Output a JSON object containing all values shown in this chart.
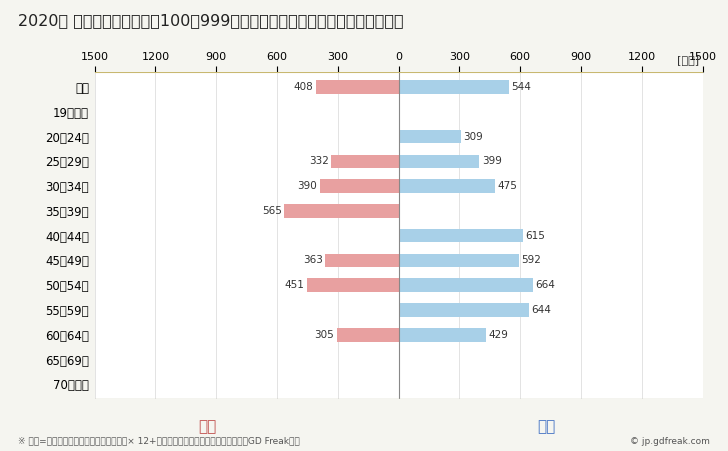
{
  "title": "2020年 民間企業（従業者数100～999人）フルタイム労働者の男女別平均年収",
  "unit_label": "[万円]",
  "categories": [
    "全体",
    "19歳以下",
    "20～24歳",
    "25～29歳",
    "30～34歳",
    "35～39歳",
    "40～44歳",
    "45～49歳",
    "50～54歳",
    "55～59歳",
    "60～64歳",
    "65～69歳",
    "70歳以上"
  ],
  "female_values": [
    408,
    0,
    0,
    332,
    390,
    565,
    0,
    363,
    451,
    0,
    305,
    0,
    0
  ],
  "male_values": [
    544,
    0,
    309,
    399,
    475,
    0,
    615,
    592,
    664,
    644,
    429,
    0,
    0
  ],
  "female_color": "#e8a0a0",
  "male_color": "#a8d0e8",
  "xlim": 1500,
  "female_label": "女性",
  "male_label": "男性",
  "female_label_color": "#c0504d",
  "male_label_color": "#4472c4",
  "footnote": "※ 年収=「きまって支給する現金給与額」× 12+「年間賞与その他特別給与額」としてGD Freak推計",
  "copyright": "© jp.gdfreak.com",
  "background_color": "#f5f5f0",
  "plot_background": "#ffffff",
  "title_fontsize": 11.5,
  "bar_height": 0.55,
  "border_top_color": "#c8b870",
  "border_bottom_color": "#c8c8b0",
  "grid_color": "#d8d8d8",
  "center_line_color": "#888888",
  "label_color": "#333333",
  "tick_label_fontsize": 8,
  "bar_label_fontsize": 7.5,
  "ytick_fontsize": 8.5,
  "legend_fontsize": 11,
  "footnote_fontsize": 6.5,
  "unit_fontsize": 8
}
